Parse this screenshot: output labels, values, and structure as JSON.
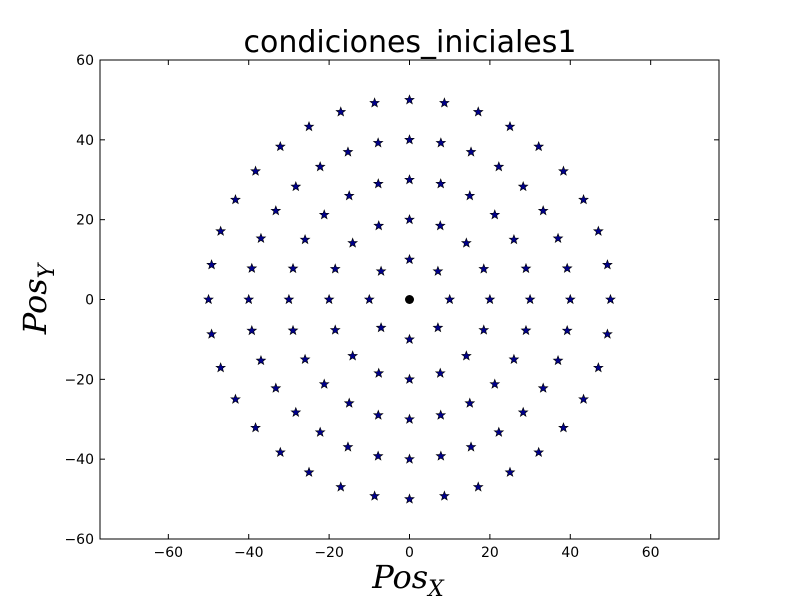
{
  "chart_data": {
    "type": "scatter",
    "title": "condiciones_iniciales1",
    "xlabel": {
      "main": "Pos",
      "sub": "X"
    },
    "ylabel": {
      "main": "Pos",
      "sub": "Y"
    },
    "xlim": [
      -77,
      77
    ],
    "ylim": [
      -60,
      60
    ],
    "xticks": [
      -60,
      -40,
      -20,
      0,
      20,
      40,
      60
    ],
    "yticks": [
      -60,
      -40,
      -20,
      0,
      20,
      40,
      60
    ],
    "grid": false,
    "legend": "none",
    "series": [
      {
        "marker": "star",
        "color": "#00008b",
        "rings": [
          {
            "radius": 10,
            "count": 8
          },
          {
            "radius": 20,
            "count": 16
          },
          {
            "radius": 30,
            "count": 24
          },
          {
            "radius": 40,
            "count": 32
          },
          {
            "radius": 50,
            "count": 36
          }
        ]
      },
      {
        "marker": "circle",
        "color": "#000000",
        "points": [
          [
            0,
            0
          ]
        ]
      }
    ]
  }
}
